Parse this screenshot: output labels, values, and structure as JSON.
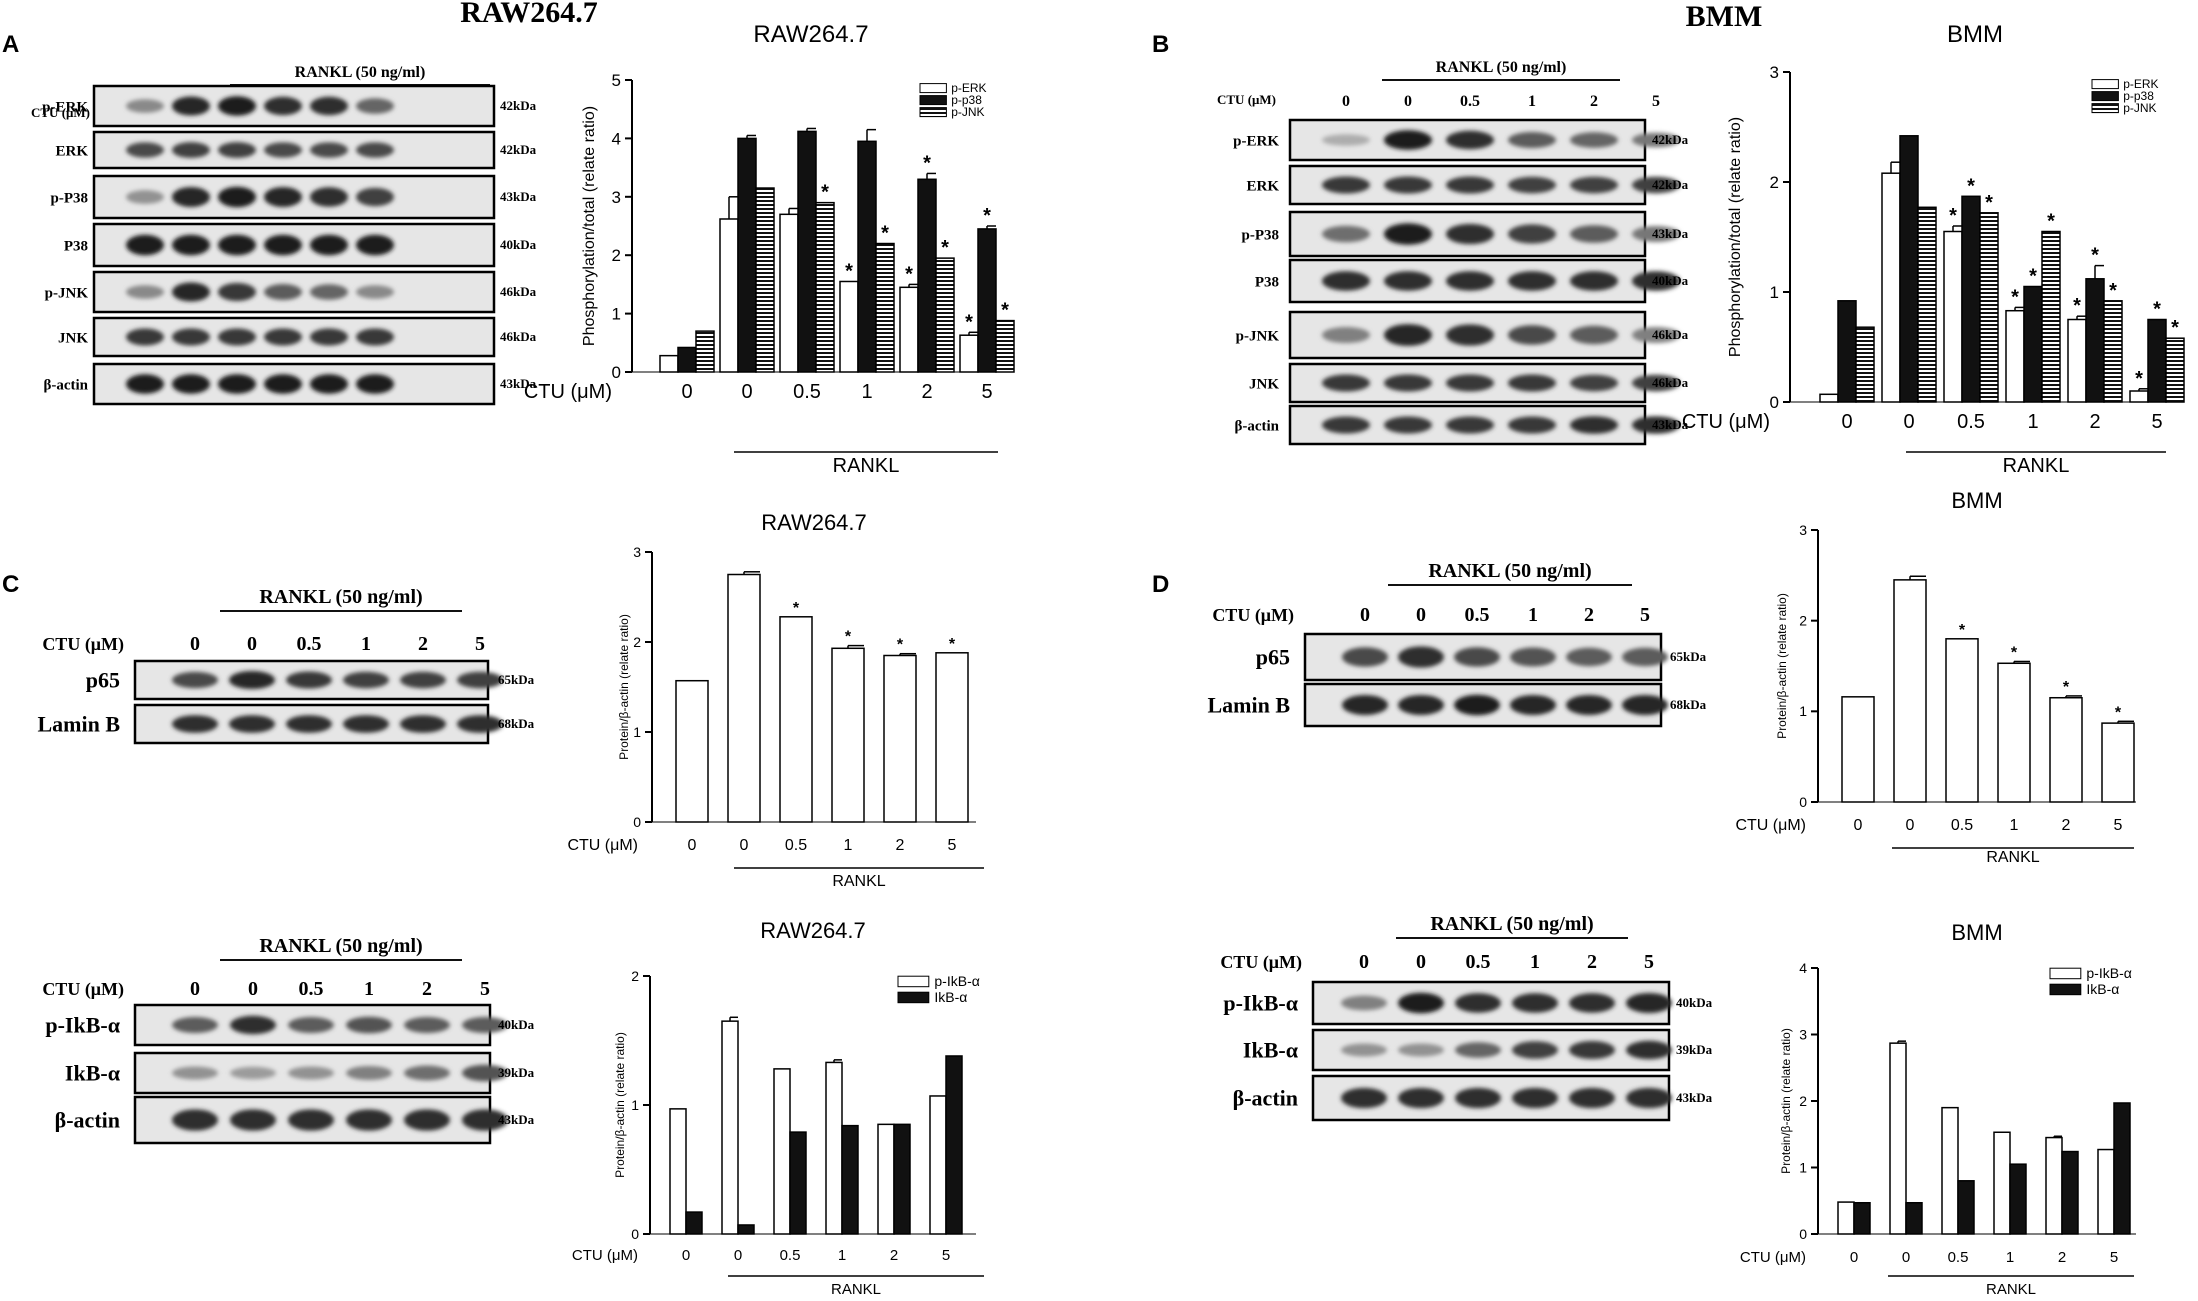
{
  "headers": {
    "left": "RAW264.7",
    "right": "BMM"
  },
  "panels": {
    "A": {
      "letter": "A"
    },
    "B": {
      "letter": "B"
    },
    "C": {
      "letter": "C"
    },
    "D": {
      "letter": "D"
    }
  },
  "blots": [
    {
      "id": "A",
      "rankl": "RANKL (50 ng/ml)",
      "ctu": "CTU (μM)",
      "lanes": [
        "0",
        "0",
        "0.5",
        "1",
        "2",
        "5"
      ],
      "rows": [
        {
          "label": "p-ERK",
          "kda": "42kDa",
          "bands": [
            0.35,
            0.9,
            0.95,
            0.85,
            0.85,
            0.55
          ]
        },
        {
          "label": "ERK",
          "kda": "42kDa",
          "bands": [
            0.7,
            0.75,
            0.75,
            0.7,
            0.7,
            0.7
          ]
        },
        {
          "label": "p-P38",
          "kda": "43kDa",
          "bands": [
            0.3,
            0.9,
            0.95,
            0.9,
            0.85,
            0.75
          ]
        },
        {
          "label": "P38",
          "kda": "40kDa",
          "bands": [
            0.95,
            0.95,
            0.95,
            0.95,
            0.95,
            0.95
          ]
        },
        {
          "label": "p-JNK",
          "kda": "46kDa",
          "bands": [
            0.35,
            0.9,
            0.8,
            0.6,
            0.55,
            0.35
          ]
        },
        {
          "label": "JNK",
          "kda": "46kDa",
          "bands": [
            0.8,
            0.8,
            0.8,
            0.8,
            0.8,
            0.8
          ]
        },
        {
          "label": "β-actin",
          "kda": "43kDa",
          "bands": [
            0.95,
            0.95,
            0.95,
            0.95,
            0.95,
            0.95
          ]
        }
      ]
    },
    {
      "id": "B",
      "rankl": "RANKL (50 ng/ml)",
      "ctu": "CTU (μM)",
      "lanes": [
        "0",
        "0",
        "0.5",
        "1",
        "2",
        "5"
      ],
      "rows": [
        {
          "label": "p-ERK",
          "kda": "42kDa",
          "bands": [
            0.15,
            0.95,
            0.85,
            0.6,
            0.55,
            0.45
          ]
        },
        {
          "label": "ERK",
          "kda": "42kDa",
          "bands": [
            0.8,
            0.8,
            0.8,
            0.75,
            0.75,
            0.75
          ]
        },
        {
          "label": "p-P38",
          "kda": "43kDa",
          "bands": [
            0.5,
            0.95,
            0.85,
            0.75,
            0.6,
            0.45
          ]
        },
        {
          "label": "P38",
          "kda": "40kDa",
          "bands": [
            0.85,
            0.85,
            0.85,
            0.85,
            0.85,
            0.85
          ]
        },
        {
          "label": "p-JNK",
          "kda": "46kDa",
          "bands": [
            0.4,
            0.9,
            0.85,
            0.7,
            0.6,
            0.4
          ]
        },
        {
          "label": "JNK",
          "kda": "46kDa",
          "bands": [
            0.8,
            0.8,
            0.8,
            0.8,
            0.75,
            0.75
          ]
        },
        {
          "label": "β-actin",
          "kda": "43kDa",
          "bands": [
            0.8,
            0.8,
            0.8,
            0.8,
            0.85,
            0.85
          ]
        }
      ]
    },
    {
      "id": "C1",
      "rankl": "RANKL (50 ng/ml)",
      "ctu": "CTU (μM)",
      "lanes": [
        "0",
        "0",
        "0.5",
        "1",
        "2",
        "5"
      ],
      "rows": [
        {
          "label": "p65",
          "kda": "65kDa",
          "bands": [
            0.7,
            0.9,
            0.8,
            0.75,
            0.75,
            0.75
          ]
        },
        {
          "label": "Lamin B",
          "kda": "68kDa",
          "bands": [
            0.85,
            0.85,
            0.85,
            0.85,
            0.85,
            0.85
          ]
        }
      ]
    },
    {
      "id": "C2",
      "rankl": "RANKL (50 ng/ml)",
      "ctu": "CTU (μM)",
      "lanes": [
        "0",
        "0",
        "0.5",
        "1",
        "2",
        "5"
      ],
      "rows": [
        {
          "label": "p-IkB-α",
          "kda": "40kDa",
          "bands": [
            0.6,
            0.85,
            0.6,
            0.65,
            0.6,
            0.6
          ]
        },
        {
          "label": "IkB-α",
          "kda": "39kDa",
          "bands": [
            0.3,
            0.25,
            0.3,
            0.4,
            0.5,
            0.65
          ]
        },
        {
          "label": "β-actin",
          "kda": "43kDa",
          "bands": [
            0.85,
            0.85,
            0.85,
            0.85,
            0.85,
            0.85
          ]
        }
      ]
    },
    {
      "id": "D1",
      "rankl": "RANKL (50 ng/ml)",
      "ctu": "CTU (μM)",
      "lanes": [
        "0",
        "0",
        "0.5",
        "1",
        "2",
        "5"
      ],
      "rows": [
        {
          "label": "p65",
          "kda": "65kDa",
          "bands": [
            0.7,
            0.85,
            0.7,
            0.65,
            0.6,
            0.6
          ]
        },
        {
          "label": "Lamin B",
          "kda": "68kDa",
          "bands": [
            0.9,
            0.9,
            0.95,
            0.9,
            0.9,
            0.9
          ]
        }
      ]
    },
    {
      "id": "D2",
      "rankl": "RANKL (50 ng/ml)",
      "ctu": "CTU (μM)",
      "lanes": [
        "0",
        "0",
        "0.5",
        "1",
        "2",
        "5"
      ],
      "rows": [
        {
          "label": "p-IkB-α",
          "kda": "40kDa",
          "bands": [
            0.4,
            0.95,
            0.85,
            0.85,
            0.85,
            0.9
          ]
        },
        {
          "label": "IkB-α",
          "kda": "39kDa",
          "bands": [
            0.3,
            0.3,
            0.55,
            0.75,
            0.8,
            0.85
          ]
        },
        {
          "label": "β-actin",
          "kda": "43kDa",
          "bands": [
            0.85,
            0.85,
            0.85,
            0.85,
            0.85,
            0.85
          ]
        }
      ]
    }
  ],
  "chart_data": [
    {
      "id": "A",
      "type": "bar",
      "title": "RAW264.7",
      "ylabel": "Phosphorylation/total (relate ratio)",
      "ylim": [
        0,
        5
      ],
      "yticks": [
        0,
        1,
        2,
        3,
        4,
        5
      ],
      "xprefix": "CTU (μM)",
      "categories": [
        "0",
        "0",
        "0.5",
        "1",
        "2",
        "5"
      ],
      "group_label": "RANKL",
      "legend": "top-right",
      "series": [
        {
          "name": "p-ERK",
          "pattern": "white",
          "values": [
            0.28,
            2.62,
            2.7,
            1.55,
            1.45,
            0.63
          ],
          "errors": [
            0,
            0.38,
            0.1,
            0,
            0.05,
            0.05
          ],
          "stars": [
            false,
            false,
            false,
            true,
            true,
            true
          ]
        },
        {
          "name": "p-p38",
          "pattern": "black",
          "values": [
            0.42,
            4.0,
            4.12,
            3.95,
            3.3,
            2.45
          ],
          "errors": [
            0,
            0.05,
            0.05,
            0.2,
            0.1,
            0.05
          ],
          "stars": [
            false,
            false,
            false,
            false,
            true,
            true
          ]
        },
        {
          "name": "p-JNK",
          "pattern": "stripe",
          "values": [
            0.7,
            3.15,
            2.9,
            2.2,
            1.95,
            0.88
          ],
          "errors": [
            0,
            0,
            0,
            0,
            0,
            0
          ],
          "stars": [
            false,
            false,
            true,
            true,
            true,
            true
          ]
        }
      ]
    },
    {
      "id": "B",
      "type": "bar",
      "title": "BMM",
      "ylabel": "Phosphorylation/total (relate ratio)",
      "ylim": [
        0,
        3
      ],
      "yticks": [
        0,
        1,
        2,
        3
      ],
      "xprefix": "CTU (μM)",
      "categories": [
        "0",
        "0",
        "0.5",
        "1",
        "2",
        "5"
      ],
      "group_label": "RANKL",
      "legend": "top-right",
      "series": [
        {
          "name": "p-ERK",
          "pattern": "white",
          "values": [
            0.07,
            2.08,
            1.55,
            0.83,
            0.75,
            0.1
          ],
          "errors": [
            0,
            0.1,
            0.05,
            0.03,
            0.03,
            0.02
          ],
          "stars": [
            false,
            false,
            true,
            true,
            true,
            true
          ]
        },
        {
          "name": "p-p38",
          "pattern": "black",
          "values": [
            0.92,
            2.42,
            1.87,
            1.05,
            1.12,
            0.75
          ],
          "errors": [
            0,
            0,
            0,
            0,
            0.12,
            0
          ],
          "stars": [
            false,
            false,
            true,
            true,
            true,
            true
          ]
        },
        {
          "name": "p-JNK",
          "pattern": "stripe",
          "values": [
            0.68,
            1.77,
            1.72,
            1.55,
            0.92,
            0.58
          ],
          "errors": [
            0,
            0,
            0,
            0,
            0,
            0
          ],
          "stars": [
            false,
            false,
            true,
            true,
            true,
            true
          ]
        }
      ]
    },
    {
      "id": "C1",
      "type": "bar",
      "title": "RAW264.7",
      "ylabel": "Protein/β-actin (relate ratio)",
      "ylim": [
        0,
        3
      ],
      "yticks": [
        0,
        1,
        2,
        3
      ],
      "xprefix": "CTU (μM)",
      "categories": [
        "0",
        "0",
        "0.5",
        "1",
        "2",
        "5"
      ],
      "group_label": "RANKL",
      "legend": "",
      "series": [
        {
          "name": "",
          "pattern": "white",
          "values": [
            1.57,
            2.75,
            2.28,
            1.93,
            1.85,
            1.88
          ],
          "errors": [
            0,
            0.03,
            0,
            0.03,
            0.02,
            0
          ],
          "stars": [
            false,
            false,
            true,
            true,
            true,
            true
          ]
        }
      ]
    },
    {
      "id": "C2",
      "type": "bar",
      "title": "RAW264.7",
      "ylabel": "Protein/β-actin (relate ratio)",
      "ylim": [
        0,
        2
      ],
      "yticks": [
        0,
        1,
        2
      ],
      "xprefix": "CTU (μM)",
      "categories": [
        "0",
        "0",
        "0.5",
        "1",
        "2",
        "5"
      ],
      "group_label": "RANKL",
      "legend": "top-right",
      "series": [
        {
          "name": "p-IkB-α",
          "pattern": "white",
          "values": [
            0.97,
            1.65,
            1.28,
            1.33,
            0.85,
            1.07
          ],
          "errors": [
            0,
            0.03,
            0,
            0.02,
            0,
            0
          ],
          "stars": [
            false,
            false,
            false,
            false,
            false,
            false
          ]
        },
        {
          "name": "IkB-α",
          "pattern": "black",
          "values": [
            0.17,
            0.07,
            0.79,
            0.84,
            0.85,
            1.38
          ],
          "errors": [
            0,
            0,
            0,
            0,
            0,
            0
          ],
          "stars": [
            false,
            false,
            false,
            false,
            false,
            false
          ]
        }
      ]
    },
    {
      "id": "D1",
      "type": "bar",
      "title": "BMM",
      "ylabel": "Protein/β-actin (relate ratio)",
      "ylim": [
        0,
        3
      ],
      "yticks": [
        0,
        1,
        2,
        3
      ],
      "xprefix": "CTU (μM)",
      "categories": [
        "0",
        "0",
        "0.5",
        "1",
        "2",
        "5"
      ],
      "group_label": "RANKL",
      "legend": "",
      "series": [
        {
          "name": "",
          "pattern": "white",
          "values": [
            1.16,
            2.45,
            1.8,
            1.53,
            1.15,
            0.87
          ],
          "errors": [
            0,
            0.04,
            0,
            0.02,
            0.02,
            0.02
          ],
          "stars": [
            false,
            false,
            true,
            true,
            true,
            true
          ]
        }
      ]
    },
    {
      "id": "D2",
      "type": "bar",
      "title": "BMM",
      "ylabel": "Protein/β-actin (relate ratio)",
      "ylim": [
        0,
        4
      ],
      "yticks": [
        0,
        1,
        2,
        3,
        4
      ],
      "xprefix": "CTU (μM)",
      "categories": [
        "0",
        "0",
        "0.5",
        "1",
        "2",
        "5"
      ],
      "group_label": "RANKL",
      "legend": "top-right",
      "series": [
        {
          "name": "p-IkB-α",
          "pattern": "white",
          "values": [
            0.48,
            2.87,
            1.9,
            1.53,
            1.45,
            1.27
          ],
          "errors": [
            0,
            0.03,
            0,
            0,
            0.02,
            0
          ],
          "stars": [
            false,
            false,
            false,
            false,
            false,
            false
          ]
        },
        {
          "name": "IkB-α",
          "pattern": "black",
          "values": [
            0.47,
            0.47,
            0.8,
            1.05,
            1.24,
            1.97
          ],
          "errors": [
            0,
            0,
            0,
            0,
            0,
            0
          ],
          "stars": [
            false,
            false,
            false,
            false,
            false,
            false
          ]
        }
      ]
    }
  ]
}
